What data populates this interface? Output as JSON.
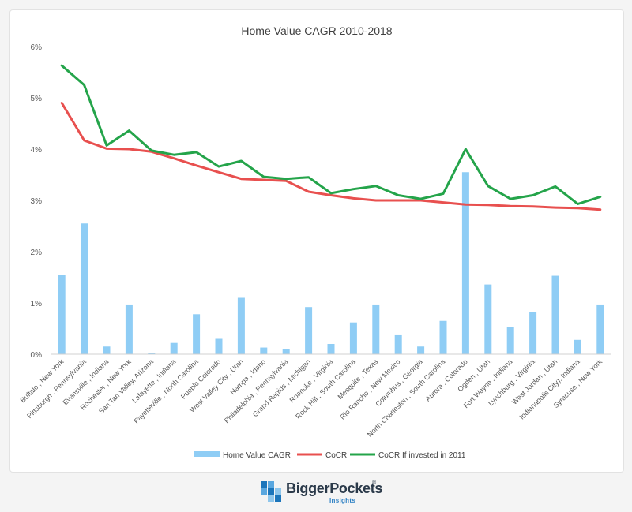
{
  "chart_data": {
    "type": "bar",
    "title": "Home Value CAGR 2010-2018",
    "xlabel": "",
    "ylabel": "",
    "ylim": [
      0,
      6
    ],
    "yticks": [
      "0%",
      "1%",
      "2%",
      "3%",
      "4%",
      "5%",
      "6%"
    ],
    "grid": false,
    "legend_position": "bottom",
    "categories": [
      "Buffalo , New York",
      "Pittsburgh , Pennsylvania",
      "Evansville , Indiana",
      "Rochester , New York",
      "San Tan Valley, Arizona",
      "Lafayette , Indiana",
      "Fayetteville , North Carolina",
      "Pueblo Colorado",
      "West Valley City , Utah",
      "Nampa , Idaho",
      "Philadelphia , Pennsylvania",
      "Grand Rapids , Michigan",
      "Roanoke , Virginia",
      "Rock Hill , South Carolina",
      "Mesquite , Texas",
      "Rio Rancho , New Mexico",
      "Columbus , Georgia",
      "North Charleston , South Carolina",
      "Aurora , Colorado",
      "Ogden , Utah",
      "Fort Wayne , Indiana",
      "Lynchburg , Virginia",
      "West Jordan , Utah",
      "Indianapolis City), Indiana",
      "Syracuse , New York"
    ],
    "series": [
      {
        "name": "Home Value CAGR",
        "type": "bar",
        "color": "#8fcdf5",
        "values": [
          1.55,
          2.55,
          0.15,
          0.97,
          0.02,
          0.22,
          0.78,
          0.3,
          1.1,
          0.13,
          0.1,
          0.92,
          0.2,
          0.62,
          0.97,
          0.37,
          0.15,
          0.65,
          3.55,
          1.36,
          0.53,
          0.83,
          1.53,
          0.28,
          0.97
        ]
      },
      {
        "name": "CoCR",
        "type": "line",
        "color": "#e8504f",
        "values": [
          4.9,
          4.17,
          4.01,
          4.0,
          3.95,
          3.82,
          3.68,
          3.55,
          3.42,
          3.4,
          3.38,
          3.17,
          3.1,
          3.04,
          3.0,
          3.0,
          3.0,
          2.96,
          2.92,
          2.91,
          2.89,
          2.88,
          2.86,
          2.85,
          2.82
        ]
      },
      {
        "name": "CoCR If invested in 2011",
        "type": "line",
        "color": "#24a44a",
        "values": [
          5.63,
          5.25,
          4.07,
          4.36,
          3.97,
          3.89,
          3.94,
          3.66,
          3.77,
          3.46,
          3.42,
          3.45,
          3.14,
          3.22,
          3.28,
          3.1,
          3.03,
          3.13,
          4.0,
          3.28,
          3.03,
          3.1,
          3.27,
          2.93,
          3.07
        ]
      }
    ]
  },
  "branding": {
    "name": "BiggerPockets",
    "mark": "®",
    "sub": "Insights"
  }
}
